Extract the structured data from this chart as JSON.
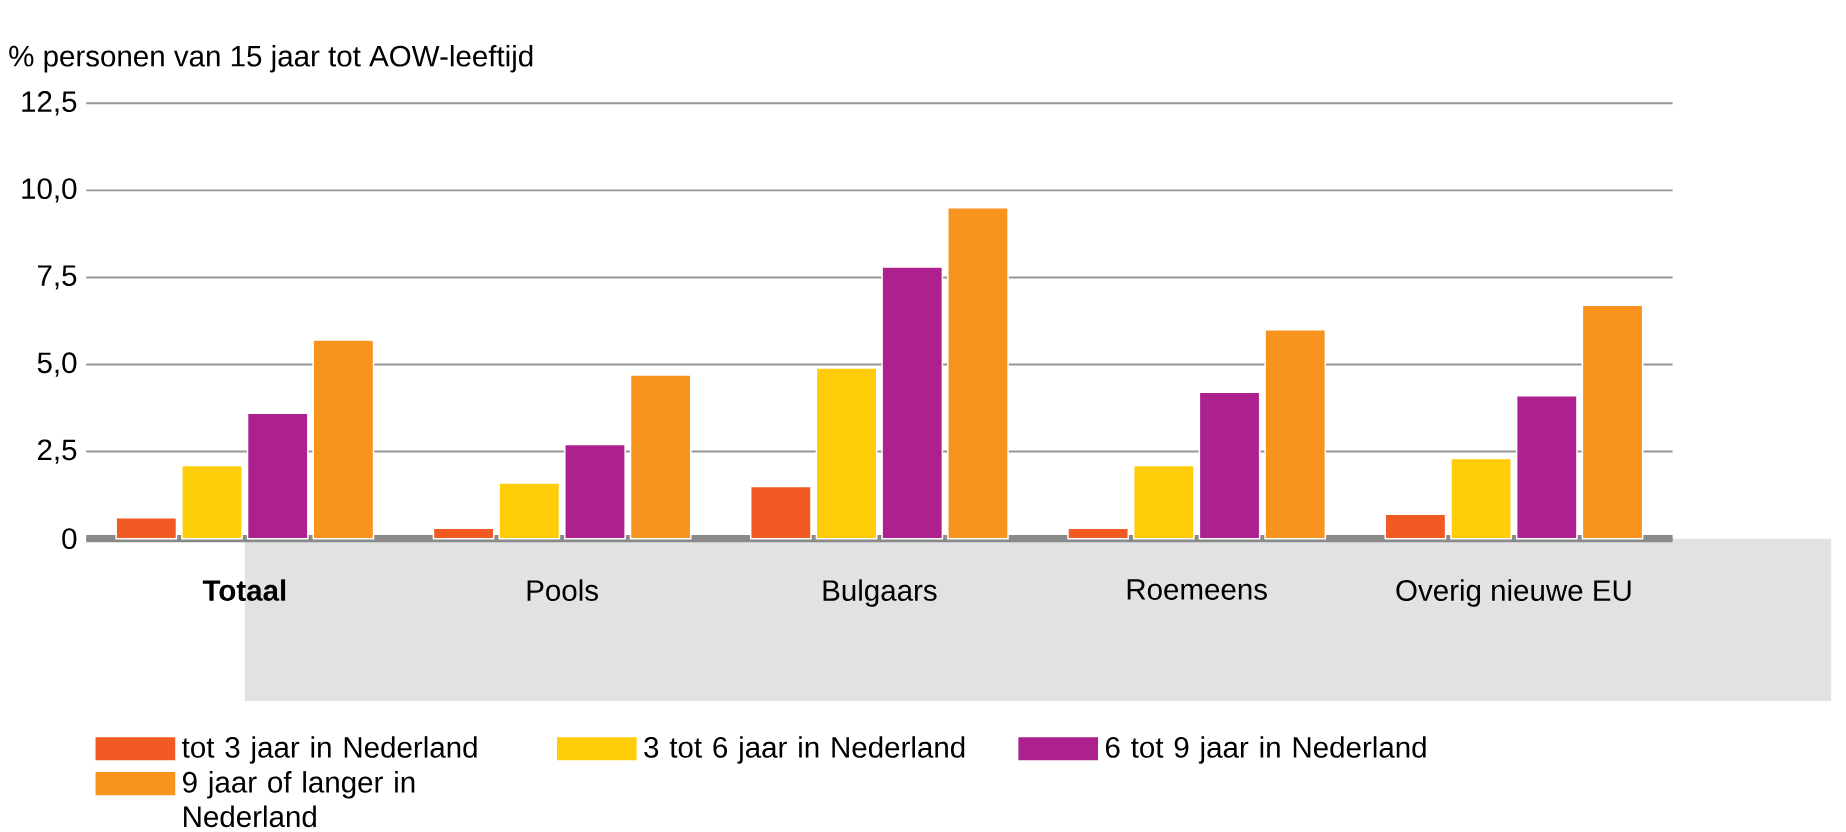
{
  "chart_data": {
    "type": "bar",
    "ylabel": "% personen van 15 jaar tot AOW-leeftijd",
    "categories": [
      "**Totaal**",
      "Pools",
      "Bulgaars",
      "Roemeens",
      "Overig nieuwe EU"
    ],
    "series": [
      {
        "name": "tot 3 jaar in Nederland",
        "color": "#f15a22",
        "values": [
          0.6,
          0.3,
          1.5,
          0.3,
          0.7
        ]
      },
      {
        "name": "3 tot 6 jaar in Nederland",
        "color": "#ffcc0a",
        "values": [
          2.1,
          1.6,
          4.9,
          2.1,
          2.3
        ]
      },
      {
        "name": "6 tot 9 jaar in Nederland",
        "color": "#ac218e",
        "values": [
          3.6,
          2.7,
          7.8,
          4.2,
          4.1
        ]
      },
      {
        "name": "9 jaar of langer in Nederland",
        "color": "#f7931e",
        "values": [
          5.7,
          4.7,
          9.5,
          6.0,
          6.7
        ]
      }
    ],
    "ylim": [
      0,
      12.5
    ],
    "yticks": [
      0,
      {
        "value": 2.5,
        "label": "2,5"
      },
      {
        "value": 5,
        "label": "5,0"
      },
      {
        "value": 7.5,
        "label": "7,5"
      },
      {
        "value": 10,
        "label": "10,0"
      },
      {
        "value": 12.5,
        "label": "12,5"
      }
    ],
    "grid": "y",
    "legend": "bottom"
  }
}
